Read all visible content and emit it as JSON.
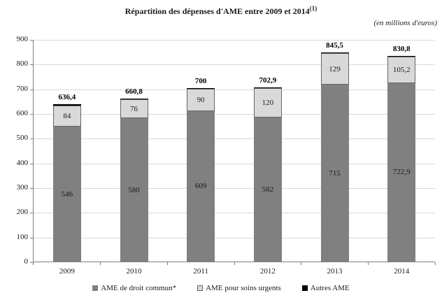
{
  "header": {
    "title": "Répartition des dépenses d'AME entre 2009 et 2014",
    "title_superscript": "(1)",
    "unit_note": "(en millions d'euros)"
  },
  "chart_data": {
    "type": "bar",
    "stacked": true,
    "title": "Répartition des dépenses d'AME entre 2009 et 2014",
    "unit": "en millions d'euros",
    "categories": [
      "2009",
      "2010",
      "2011",
      "2012",
      "2013",
      "2014"
    ],
    "series": [
      {
        "name": "AME de droit commun*",
        "color": "#808080",
        "values": [
          546,
          580,
          609,
          582,
          715,
          722.9
        ],
        "labels": [
          "546",
          "580",
          "609",
          "582",
          "715",
          "722,9"
        ]
      },
      {
        "name": "AME pour soins urgents",
        "color": "#d9d9d9",
        "values": [
          84,
          76,
          90,
          120,
          129,
          105.2
        ],
        "labels": [
          "84",
          "76",
          "90",
          "120",
          "129",
          "105,2"
        ]
      },
      {
        "name": "Autres AME",
        "color": "#000000",
        "values": [
          6.4,
          4.8,
          1,
          0.9,
          1.5,
          2.7
        ],
        "labels": [
          "",
          "",
          "",
          "",
          "",
          ""
        ]
      }
    ],
    "totals": {
      "values": [
        636.4,
        660.8,
        700,
        702.9,
        845.5,
        830.8
      ],
      "labels": [
        "636,4",
        "660,8",
        "700",
        "702,9",
        "845,5",
        "830,8"
      ]
    },
    "xlabel": "",
    "ylabel": "",
    "ylim": [
      0,
      900
    ],
    "yticks": [
      0,
      100,
      200,
      300,
      400,
      500,
      600,
      700,
      800,
      900
    ],
    "grid": true,
    "legend_position": "bottom",
    "style": {
      "axis_color": "#808080",
      "gridline_color": "#d9d9d9",
      "light_segment_border": "#666666"
    }
  }
}
